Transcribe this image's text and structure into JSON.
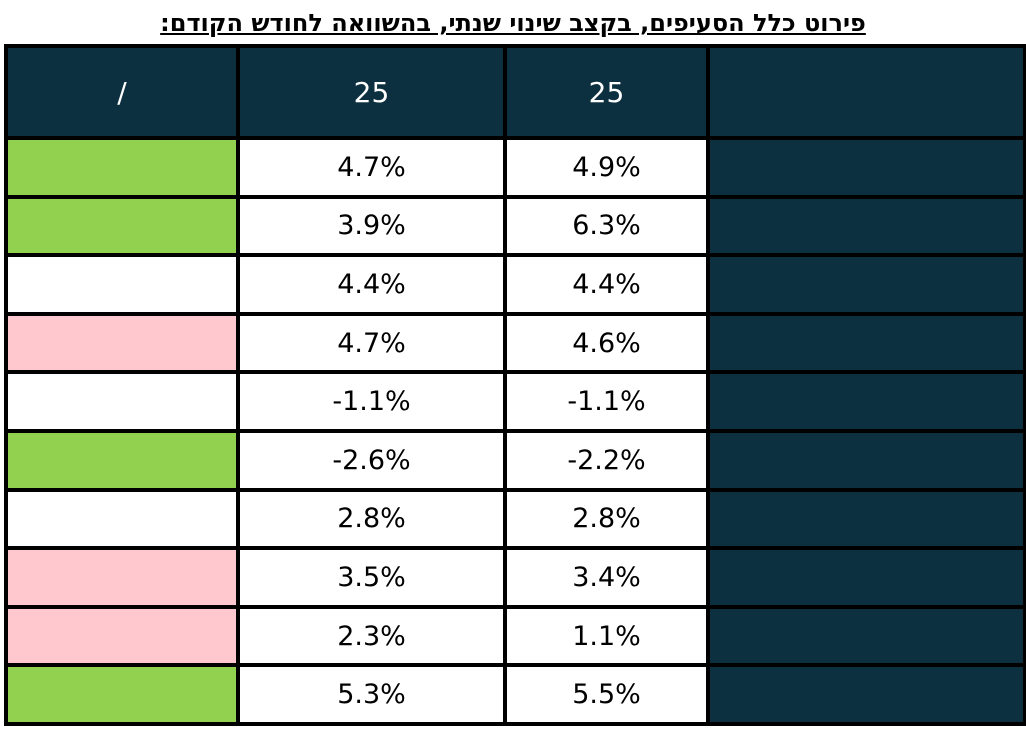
{
  "title": "פירוט כלל הסעיפים, בקצב שינוי שנתי, בהשוואה לחודש הקודם:",
  "header": {
    "col1": "/",
    "col2": "25",
    "col3": "25",
    "col4": ""
  },
  "colors": {
    "header_bg": "#0d3040",
    "green": "#92d050",
    "pink": "#ffc7ce",
    "white": "#ffffff"
  },
  "rows": [
    {
      "status": "green",
      "value_a": "4.7%",
      "value_b": "4.9%",
      "label": ""
    },
    {
      "status": "green",
      "value_a": "3.9%",
      "value_b": "6.3%",
      "label": ""
    },
    {
      "status": "none",
      "value_a": "4.4%",
      "value_b": "4.4%",
      "label": ""
    },
    {
      "status": "pink",
      "value_a": "4.7%",
      "value_b": "4.6%",
      "label": ""
    },
    {
      "status": "none",
      "value_a": "-1.1%",
      "value_b": "-1.1%",
      "label": ""
    },
    {
      "status": "green",
      "value_a": "-2.6%",
      "value_b": "-2.2%",
      "label": ""
    },
    {
      "status": "none",
      "value_a": "2.8%",
      "value_b": "2.8%",
      "label": ""
    },
    {
      "status": "pink",
      "value_a": "3.5%",
      "value_b": "3.4%",
      "label": ""
    },
    {
      "status": "pink",
      "value_a": "2.3%",
      "value_b": "1.1%",
      "label": ""
    },
    {
      "status": "green",
      "value_a": "5.3%",
      "value_b": "5.5%",
      "label": ""
    }
  ]
}
